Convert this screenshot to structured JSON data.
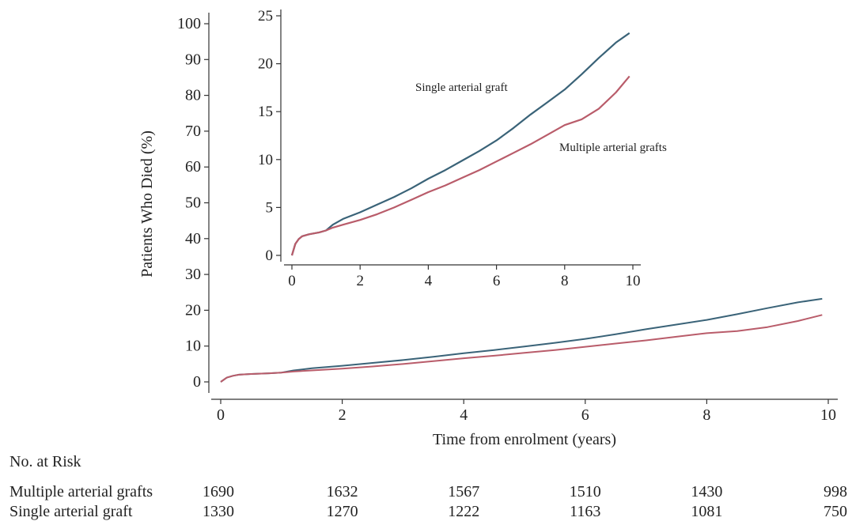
{
  "chart_data": [
    {
      "id": "main",
      "type": "line",
      "xlabel": "Time from enrolment (years)",
      "ylabel": "Patients Who Died (%)",
      "xlim": [
        0,
        10
      ],
      "ylim": [
        0,
        100
      ],
      "xticks": [
        0,
        2,
        4,
        6,
        8,
        10
      ],
      "yticks": [
        0,
        10,
        20,
        30,
        40,
        50,
        60,
        70,
        80,
        90,
        100
      ],
      "grid": false,
      "series": [
        {
          "key": "single",
          "color": "#3a6378",
          "x": [
            0,
            0.1,
            0.2,
            0.3,
            0.5,
            0.8,
            1.0,
            1.2,
            1.5,
            2.0,
            2.5,
            3.0,
            3.5,
            4.0,
            4.5,
            5.0,
            5.5,
            6.0,
            6.5,
            7.0,
            7.5,
            8.0,
            8.5,
            9.0,
            9.5,
            9.9
          ],
          "values": [
            0,
            1.2,
            1.7,
            2.0,
            2.2,
            2.4,
            2.6,
            3.2,
            3.8,
            4.5,
            5.3,
            6.1,
            7.0,
            8.0,
            8.9,
            9.9,
            10.9,
            12.0,
            13.3,
            14.7,
            16.0,
            17.3,
            18.9,
            20.6,
            22.2,
            23.2
          ]
        },
        {
          "key": "multiple",
          "color": "#b95c6a",
          "x": [
            0,
            0.1,
            0.2,
            0.3,
            0.5,
            0.8,
            1.0,
            1.2,
            1.5,
            2.0,
            2.5,
            3.0,
            3.5,
            4.0,
            4.5,
            5.0,
            5.5,
            6.0,
            6.5,
            7.0,
            7.5,
            8.0,
            8.5,
            9.0,
            9.5,
            9.9
          ],
          "values": [
            0,
            1.2,
            1.7,
            2.0,
            2.2,
            2.4,
            2.6,
            2.9,
            3.2,
            3.7,
            4.3,
            5.0,
            5.8,
            6.6,
            7.3,
            8.1,
            8.9,
            9.8,
            10.7,
            11.6,
            12.6,
            13.6,
            14.2,
            15.3,
            17.0,
            18.7
          ]
        }
      ]
    },
    {
      "id": "inset",
      "type": "line",
      "xlim": [
        0,
        10
      ],
      "ylim": [
        0,
        25
      ],
      "xticks": [
        0,
        2,
        4,
        6,
        8,
        10
      ],
      "yticks": [
        0,
        5,
        10,
        15,
        20,
        25
      ],
      "grid": false,
      "series": [
        {
          "key": "single",
          "name": "Single arterial graft",
          "color": "#3a6378",
          "x": [
            0,
            0.1,
            0.2,
            0.3,
            0.5,
            0.8,
            1.0,
            1.2,
            1.5,
            2.0,
            2.5,
            3.0,
            3.5,
            4.0,
            4.5,
            5.0,
            5.5,
            6.0,
            6.5,
            7.0,
            7.5,
            8.0,
            8.5,
            9.0,
            9.5,
            9.9
          ],
          "values": [
            0,
            1.2,
            1.7,
            2.0,
            2.2,
            2.4,
            2.6,
            3.2,
            3.8,
            4.5,
            5.3,
            6.1,
            7.0,
            8.0,
            8.9,
            9.9,
            10.9,
            12.0,
            13.3,
            14.7,
            16.0,
            17.3,
            18.9,
            20.6,
            22.2,
            23.2
          ]
        },
        {
          "key": "multiple",
          "name": "Multiple arterial grafts",
          "color": "#b95c6a",
          "x": [
            0,
            0.1,
            0.2,
            0.3,
            0.5,
            0.8,
            1.0,
            1.2,
            1.5,
            2.0,
            2.5,
            3.0,
            3.5,
            4.0,
            4.5,
            5.0,
            5.5,
            6.0,
            6.5,
            7.0,
            7.5,
            8.0,
            8.5,
            9.0,
            9.5,
            9.9
          ],
          "values": [
            0,
            1.2,
            1.7,
            2.0,
            2.2,
            2.4,
            2.6,
            2.9,
            3.2,
            3.7,
            4.3,
            5.0,
            5.8,
            6.6,
            7.3,
            8.1,
            8.9,
            9.8,
            10.7,
            11.6,
            12.6,
            13.6,
            14.2,
            15.3,
            17.0,
            18.7
          ]
        }
      ]
    }
  ],
  "risk_table": {
    "title": "No. at Risk",
    "times": [
      0,
      2,
      4,
      6,
      8,
      10
    ],
    "rows": [
      {
        "label": "Multiple arterial grafts",
        "values": [
          1690,
          1632,
          1567,
          1510,
          1430,
          998
        ]
      },
      {
        "label": "Single arterial graft",
        "values": [
          1330,
          1270,
          1222,
          1163,
          1081,
          750
        ]
      }
    ]
  }
}
